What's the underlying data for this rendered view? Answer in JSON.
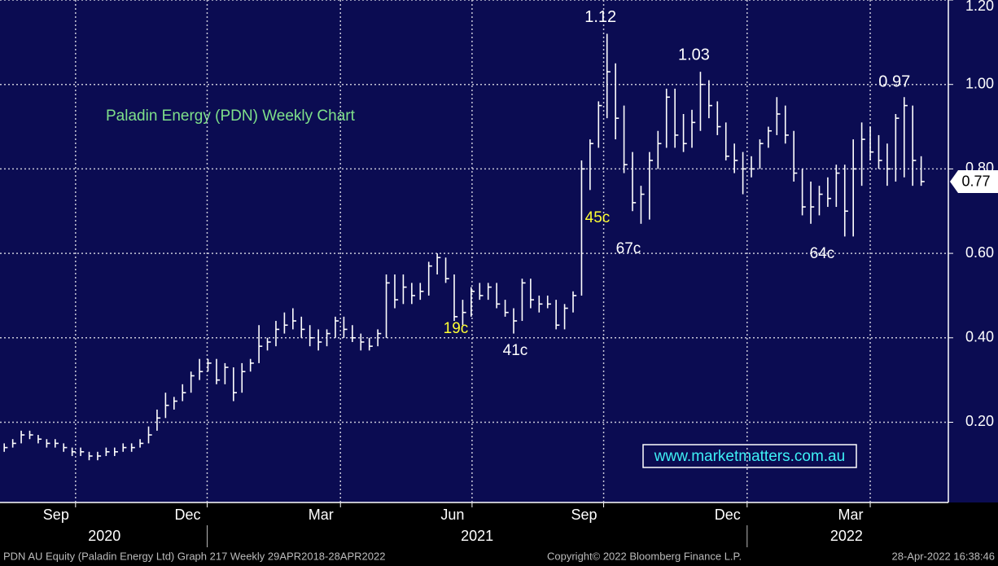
{
  "chart_data": {
    "type": "ohlc",
    "title": "Paladin Energy (PDN) Weekly Chart",
    "watermark": "www.marketmatters.com.au",
    "footer": [
      "PDN AU Equity (Paladin Energy Ltd) Graph 217  Weekly 29APR2018-28APR2022",
      "Copyright© 2022 Bloomberg Finance L.P.",
      "28-Apr-2022 16:38:46"
    ],
    "high": [
      0.15,
      0.16,
      0.18,
      0.18,
      0.17,
      0.16,
      0.16,
      0.15,
      0.14,
      0.14,
      0.13,
      0.13,
      0.14,
      0.14,
      0.15,
      0.15,
      0.16,
      0.19,
      0.23,
      0.27,
      0.26,
      0.29,
      0.32,
      0.35,
      0.35,
      0.35,
      0.34,
      0.33,
      0.34,
      0.35,
      0.43,
      0.4,
      0.44,
      0.46,
      0.47,
      0.45,
      0.43,
      0.42,
      0.42,
      0.45,
      0.45,
      0.43,
      0.41,
      0.4,
      0.42,
      0.55,
      0.55,
      0.55,
      0.53,
      0.53,
      0.58,
      0.6,
      0.59,
      0.55,
      0.49,
      0.52,
      0.53,
      0.53,
      0.53,
      0.49,
      0.47,
      0.54,
      0.54,
      0.5,
      0.5,
      0.49,
      0.48,
      0.51,
      0.82,
      0.87,
      0.96,
      1.12,
      1.05,
      0.95,
      0.84,
      0.76,
      0.84,
      0.89,
      0.99,
      0.99,
      0.93,
      0.94,
      1.03,
      1.01,
      0.96,
      0.91,
      0.86,
      0.84,
      0.83,
      0.87,
      0.9,
      0.97,
      0.95,
      0.89,
      0.8,
      0.77,
      0.76,
      0.78,
      0.81,
      0.81,
      0.87,
      0.91,
      0.9,
      0.88,
      0.86,
      0.93,
      0.97,
      0.95,
      0.83
    ],
    "low": [
      0.13,
      0.14,
      0.15,
      0.16,
      0.15,
      0.14,
      0.14,
      0.13,
      0.12,
      0.12,
      0.11,
      0.11,
      0.12,
      0.12,
      0.13,
      0.13,
      0.14,
      0.15,
      0.18,
      0.21,
      0.23,
      0.25,
      0.27,
      0.3,
      0.32,
      0.29,
      0.29,
      0.25,
      0.27,
      0.32,
      0.34,
      0.37,
      0.38,
      0.41,
      0.42,
      0.4,
      0.38,
      0.37,
      0.38,
      0.4,
      0.4,
      0.39,
      0.37,
      0.37,
      0.38,
      0.4,
      0.47,
      0.48,
      0.48,
      0.49,
      0.5,
      0.55,
      0.53,
      0.44,
      0.43,
      0.45,
      0.49,
      0.49,
      0.47,
      0.45,
      0.41,
      0.44,
      0.47,
      0.46,
      0.47,
      0.42,
      0.42,
      0.46,
      0.5,
      0.75,
      0.85,
      0.92,
      0.87,
      0.79,
      0.7,
      0.67,
      0.68,
      0.8,
      0.85,
      0.85,
      0.84,
      0.85,
      0.89,
      0.92,
      0.88,
      0.82,
      0.79,
      0.74,
      0.78,
      0.8,
      0.85,
      0.88,
      0.86,
      0.77,
      0.69,
      0.67,
      0.69,
      0.71,
      0.71,
      0.64,
      0.64,
      0.76,
      0.82,
      0.8,
      0.76,
      0.77,
      0.78,
      0.76,
      0.76
    ],
    "close": [
      0.14,
      0.15,
      0.17,
      0.17,
      0.16,
      0.15,
      0.15,
      0.14,
      0.13,
      0.13,
      0.12,
      0.12,
      0.13,
      0.13,
      0.14,
      0.14,
      0.15,
      0.17,
      0.21,
      0.24,
      0.25,
      0.27,
      0.31,
      0.32,
      0.34,
      0.3,
      0.33,
      0.27,
      0.32,
      0.34,
      0.38,
      0.39,
      0.42,
      0.43,
      0.44,
      0.42,
      0.4,
      0.39,
      0.41,
      0.44,
      0.42,
      0.4,
      0.39,
      0.38,
      0.41,
      0.53,
      0.49,
      0.52,
      0.5,
      0.51,
      0.57,
      0.59,
      0.54,
      0.45,
      0.46,
      0.51,
      0.5,
      0.52,
      0.48,
      0.46,
      0.44,
      0.53,
      0.49,
      0.48,
      0.48,
      0.43,
      0.47,
      0.5,
      0.8,
      0.86,
      0.95,
      1.03,
      0.92,
      0.81,
      0.72,
      0.74,
      0.82,
      0.86,
      0.97,
      0.88,
      0.86,
      0.91,
      1.0,
      0.95,
      0.9,
      0.83,
      0.82,
      0.8,
      0.8,
      0.86,
      0.89,
      0.93,
      0.88,
      0.79,
      0.71,
      0.71,
      0.74,
      0.73,
      0.79,
      0.7,
      0.8,
      0.87,
      0.84,
      0.82,
      0.8,
      0.92,
      0.95,
      0.82,
      0.77
    ],
    "annotations": [
      "19c",
      "41c",
      "45c",
      "67c",
      "64c"
    ],
    "annotation_colors": [
      "#ffff33",
      "#ffffff",
      "#ffff33",
      "#ffffff",
      "#ffffff"
    ],
    "ylim": [
      0.01,
      1.2
    ],
    "yticks": [
      {
        "value": 0.2,
        "label": "0.20"
      },
      {
        "value": 0.4,
        "label": "0.40"
      },
      {
        "value": 0.6,
        "label": "0.60"
      },
      {
        "value": 0.8,
        "label": "0.80"
      },
      {
        "value": 1.0,
        "label": "1.00"
      },
      {
        "value": 1.2,
        "label": "1.20"
      }
    ],
    "xlim": [
      -0.5,
      111.2
    ],
    "xticks": [
      {
        "value": 8.4,
        "label": "Sep"
      },
      {
        "value": 23.9,
        "label": "Dec"
      },
      {
        "value": 39.6,
        "label": "Mar"
      },
      {
        "value": 55.1,
        "label": "Jun"
      },
      {
        "value": 70.6,
        "label": "Sep"
      },
      {
        "value": 87.5,
        "label": "Dec"
      },
      {
        "value": 102,
        "label": "Mar"
      }
    ],
    "year_ticks": [
      {
        "value": 11.8,
        "label": "2020"
      },
      {
        "value": 55.7,
        "label": "2021"
      },
      {
        "value": 99.2,
        "label": "2022"
      }
    ],
    "color": "#ffffff",
    "grid": true
  }
}
